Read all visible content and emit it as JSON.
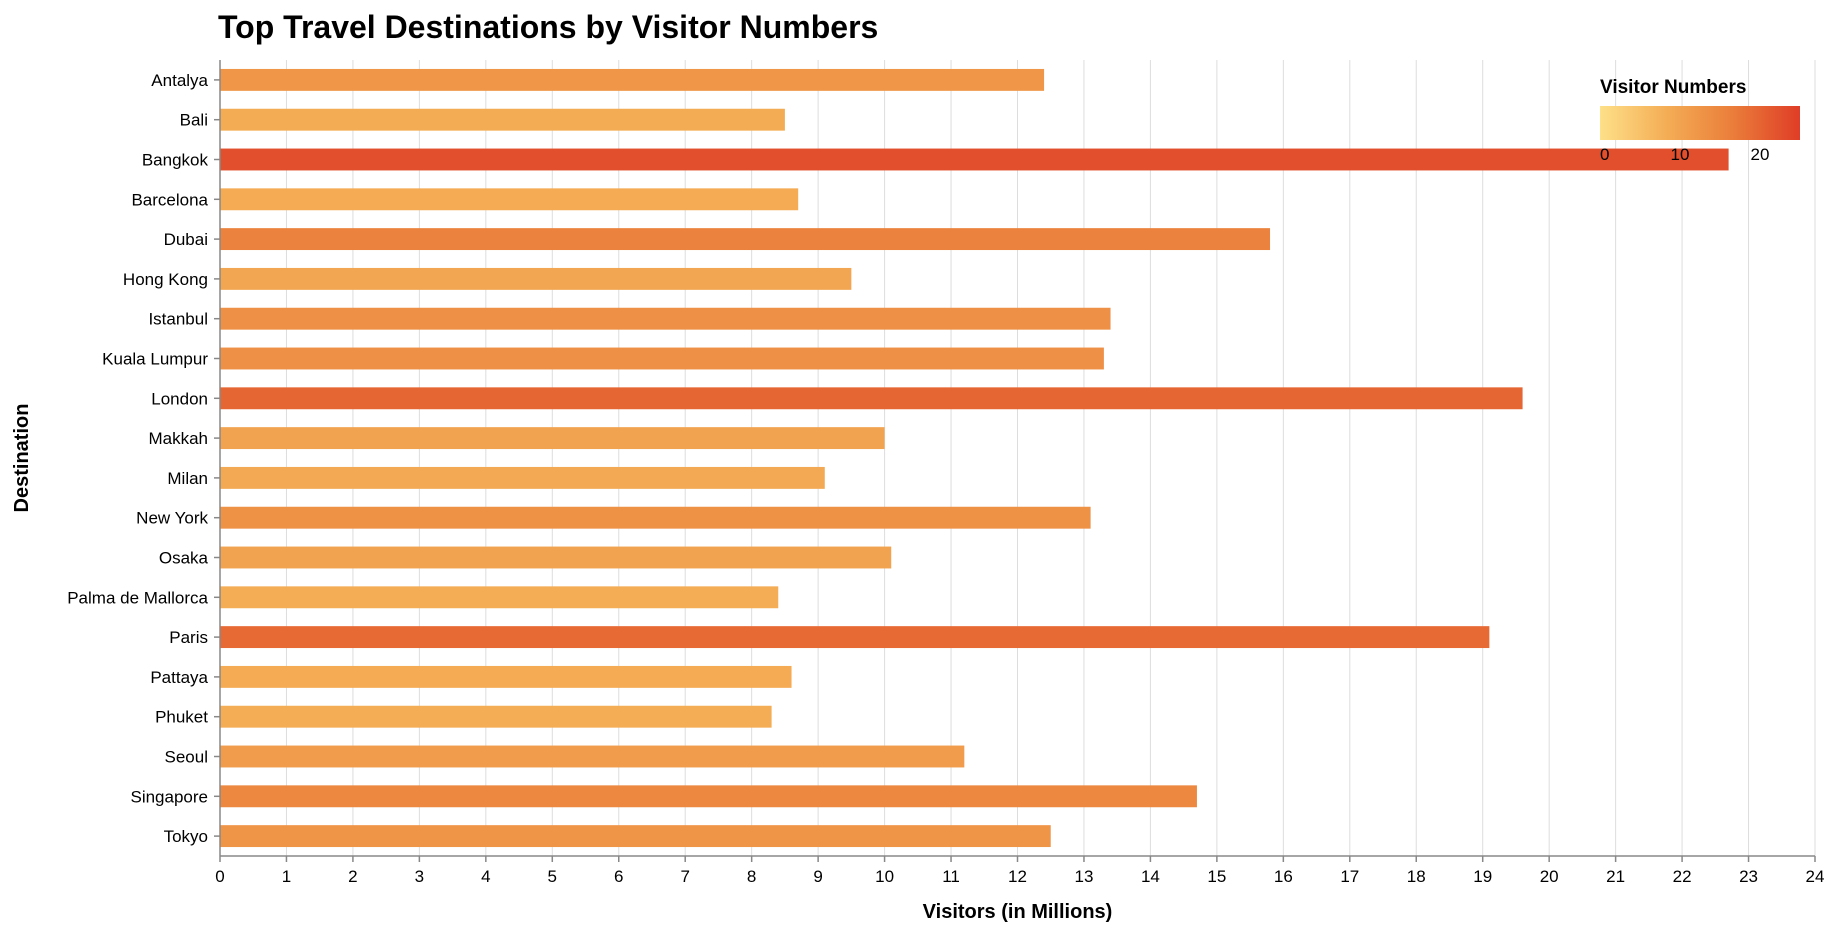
{
  "chart_data": {
    "type": "bar",
    "orientation": "horizontal",
    "title": "Top Travel Destinations by Visitor Numbers",
    "xlabel": "Visitors (in Millions)",
    "ylabel": "Destination",
    "xlim": [
      0,
      24
    ],
    "x_ticks": [
      0,
      1,
      2,
      3,
      4,
      5,
      6,
      7,
      8,
      9,
      10,
      11,
      12,
      13,
      14,
      15,
      16,
      17,
      18,
      19,
      20,
      21,
      22,
      23,
      24
    ],
    "grid": true,
    "categories": [
      "Antalya",
      "Bali",
      "Bangkok",
      "Barcelona",
      "Dubai",
      "Hong Kong",
      "Istanbul",
      "Kuala Lumpur",
      "London",
      "Makkah",
      "Milan",
      "New York",
      "Osaka",
      "Palma de Mallorca",
      "Paris",
      "Pattaya",
      "Phuket",
      "Seoul",
      "Singapore",
      "Tokyo"
    ],
    "values": [
      12.4,
      8.5,
      22.7,
      8.7,
      15.8,
      9.5,
      13.4,
      13.3,
      19.6,
      10.0,
      9.1,
      13.1,
      10.1,
      8.4,
      19.1,
      8.6,
      8.3,
      11.2,
      14.7,
      12.5
    ],
    "legend": {
      "title": "Visitor Numbers",
      "placement": "top-right",
      "ticks": [
        0,
        10,
        20
      ],
      "color_range": [
        0,
        25
      ],
      "colors": [
        "#fde089",
        "#f4ad55",
        "#ea7d3a",
        "#df3d27"
      ]
    }
  }
}
